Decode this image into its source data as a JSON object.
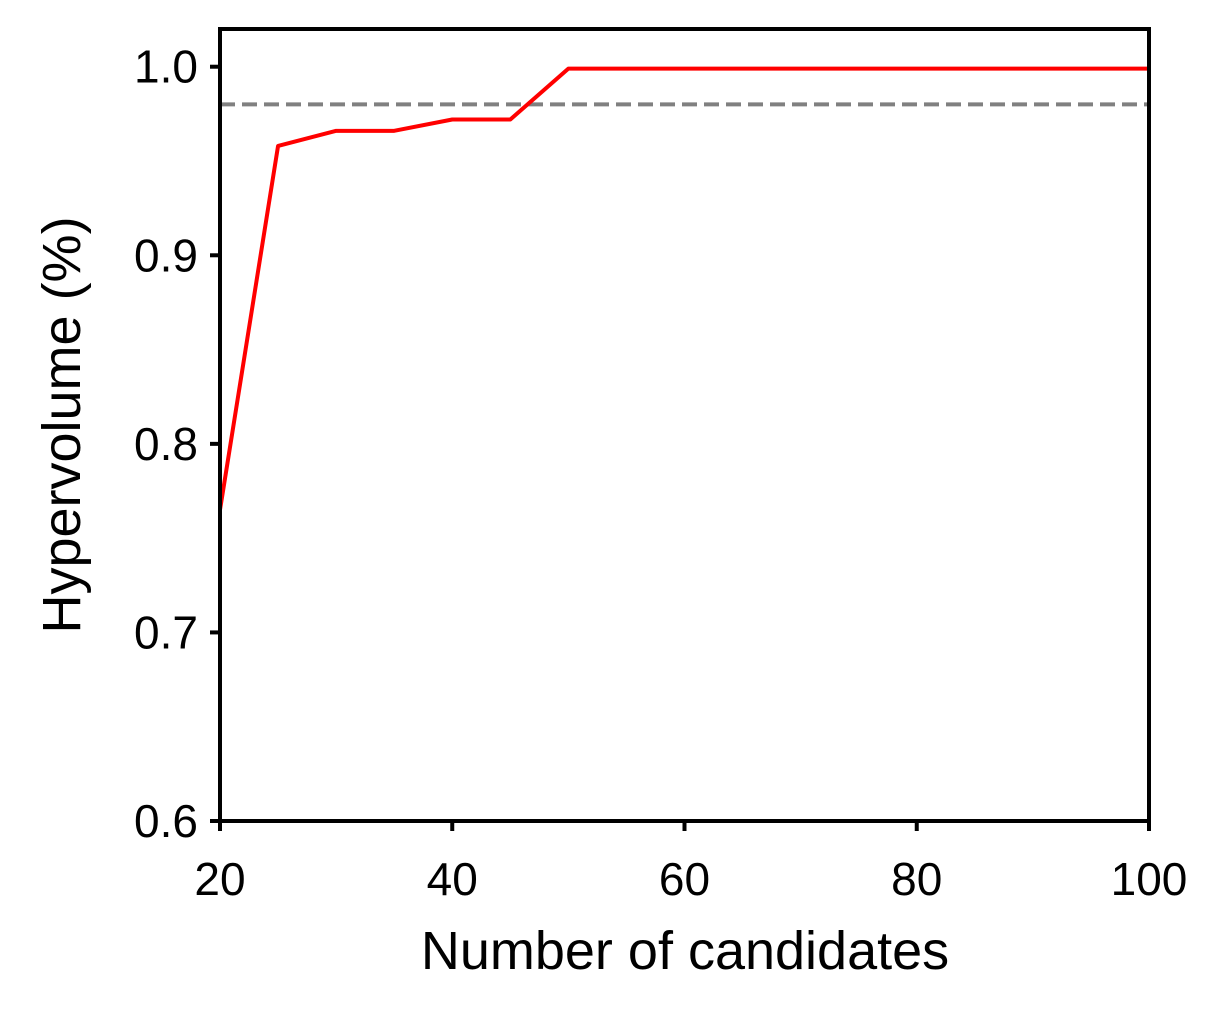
{
  "chart_data": {
    "type": "line",
    "title": "",
    "xlabel": "Number of candidates",
    "ylabel": "Hypervolume (%)",
    "xlim": [
      20,
      100
    ],
    "ylim": [
      0.6,
      1.02
    ],
    "xticks": [
      20,
      40,
      60,
      80,
      100
    ],
    "xtick_labels": [
      "20",
      "40",
      "60",
      "80",
      "100"
    ],
    "yticks": [
      0.6,
      0.7,
      0.8,
      0.9,
      1.0
    ],
    "ytick_labels": [
      "0.6",
      "0.7",
      "0.8",
      "0.9",
      "1.0"
    ],
    "grid": false,
    "series": [
      {
        "color": "#ff0000",
        "style": "solid",
        "x": [
          20,
          25,
          30,
          35,
          40,
          45,
          50,
          60,
          70,
          80,
          90,
          100
        ],
        "y": [
          0.765,
          0.958,
          0.966,
          0.966,
          0.972,
          0.972,
          0.999,
          0.999,
          0.999,
          0.999,
          0.999,
          0.999
        ]
      }
    ],
    "reference_lines": [
      {
        "orientation": "horizontal",
        "y": 0.98,
        "color": "#808080",
        "style": "dashed"
      }
    ]
  }
}
